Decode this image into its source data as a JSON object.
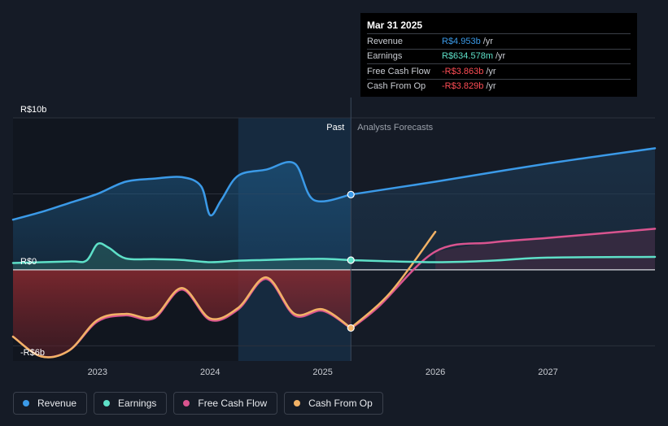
{
  "tooltip": {
    "date": "Mar 31 2025",
    "rows": [
      {
        "label": "Revenue",
        "value": "R$4.953b",
        "unit": "/yr",
        "color": "#3b9ae8"
      },
      {
        "label": "Earnings",
        "value": "R$634.578m",
        "unit": "/yr",
        "color": "#5ee0c8"
      },
      {
        "label": "Free Cash Flow",
        "value": "-R$3.863b",
        "unit": "/yr",
        "color": "#ff4d55"
      },
      {
        "label": "Cash From Op",
        "value": "-R$3.829b",
        "unit": "/yr",
        "color": "#ff4d55"
      }
    ]
  },
  "chart_data": {
    "type": "line",
    "ylim": [
      -6,
      10
    ],
    "xlim": [
      2022.25,
      2027.95
    ],
    "y_ticks": [
      {
        "value": 10,
        "label": "R$10b"
      },
      {
        "value": 0,
        "label": "R$0"
      },
      {
        "value": -6,
        "label": "-R$6b"
      }
    ],
    "x_ticks": [
      {
        "value": 2023,
        "label": "2023"
      },
      {
        "value": 2024,
        "label": "2024"
      },
      {
        "value": 2025,
        "label": "2025"
      },
      {
        "value": 2026,
        "label": "2026"
      },
      {
        "value": 2027,
        "label": "2027"
      }
    ],
    "past_label": "Past",
    "forecast_label": "Analysts Forecasts",
    "divider_x": 2025.25,
    "shade_start_x": 2024.25,
    "gridlines": true,
    "legend_placement": "bottom-left",
    "series": [
      {
        "name": "Revenue",
        "color": "#3b9ae8",
        "past": [
          [
            2022.25,
            3.3
          ],
          [
            2022.5,
            3.8
          ],
          [
            2022.75,
            4.4
          ],
          [
            2023.0,
            5.0
          ],
          [
            2023.25,
            5.8
          ],
          [
            2023.5,
            6.0
          ],
          [
            2023.75,
            6.1
          ],
          [
            2023.92,
            5.5
          ],
          [
            2024.0,
            3.6
          ],
          [
            2024.1,
            4.6
          ],
          [
            2024.25,
            6.2
          ],
          [
            2024.5,
            6.6
          ],
          [
            2024.75,
            7.0
          ],
          [
            2024.92,
            4.6
          ],
          [
            2025.25,
            4.953
          ]
        ],
        "forecast": [
          [
            2025.25,
            4.953
          ],
          [
            2026.0,
            5.8
          ],
          [
            2027.0,
            7.0
          ],
          [
            2027.95,
            8.0
          ]
        ]
      },
      {
        "name": "Earnings",
        "color": "#5ee0c8",
        "past": [
          [
            2022.25,
            0.45
          ],
          [
            2022.75,
            0.55
          ],
          [
            2022.9,
            0.6
          ],
          [
            2023.0,
            1.7
          ],
          [
            2023.1,
            1.45
          ],
          [
            2023.25,
            0.75
          ],
          [
            2023.5,
            0.7
          ],
          [
            2023.75,
            0.65
          ],
          [
            2024.0,
            0.5
          ],
          [
            2024.25,
            0.6
          ],
          [
            2024.5,
            0.65
          ],
          [
            2024.75,
            0.7
          ],
          [
            2025.0,
            0.72
          ],
          [
            2025.25,
            0.635
          ]
        ],
        "forecast": [
          [
            2025.25,
            0.635
          ],
          [
            2026.0,
            0.5
          ],
          [
            2026.5,
            0.6
          ],
          [
            2027.0,
            0.8
          ],
          [
            2027.95,
            0.85
          ]
        ]
      },
      {
        "name": "Free Cash Flow",
        "color": "#d9548f",
        "past": [
          [
            2022.25,
            -4.4
          ],
          [
            2022.5,
            -5.7
          ],
          [
            2022.75,
            -5.3
          ],
          [
            2023.0,
            -3.4
          ],
          [
            2023.25,
            -3.0
          ],
          [
            2023.5,
            -3.2
          ],
          [
            2023.75,
            -1.3
          ],
          [
            2024.0,
            -3.3
          ],
          [
            2024.25,
            -2.6
          ],
          [
            2024.5,
            -0.6
          ],
          [
            2024.75,
            -3.0
          ],
          [
            2025.0,
            -2.7
          ],
          [
            2025.25,
            -3.863
          ]
        ],
        "forecast": [
          [
            2025.25,
            -3.863
          ],
          [
            2025.5,
            -2.4
          ],
          [
            2026.0,
            1.2
          ],
          [
            2026.5,
            1.8
          ],
          [
            2027.0,
            2.1
          ],
          [
            2027.95,
            2.7
          ]
        ]
      },
      {
        "name": "Cash From Op",
        "color": "#f2b266",
        "past": [
          [
            2022.25,
            -4.4
          ],
          [
            2022.5,
            -5.7
          ],
          [
            2022.75,
            -5.3
          ],
          [
            2023.0,
            -3.3
          ],
          [
            2023.25,
            -2.9
          ],
          [
            2023.5,
            -3.1
          ],
          [
            2023.75,
            -1.2
          ],
          [
            2024.0,
            -3.2
          ],
          [
            2024.25,
            -2.5
          ],
          [
            2024.5,
            -0.5
          ],
          [
            2024.75,
            -2.9
          ],
          [
            2025.0,
            -2.6
          ],
          [
            2025.25,
            -3.829
          ]
        ],
        "forecast": [
          [
            2025.25,
            -3.829
          ],
          [
            2025.6,
            -1.5
          ],
          [
            2026.0,
            2.5
          ]
        ]
      }
    ]
  }
}
